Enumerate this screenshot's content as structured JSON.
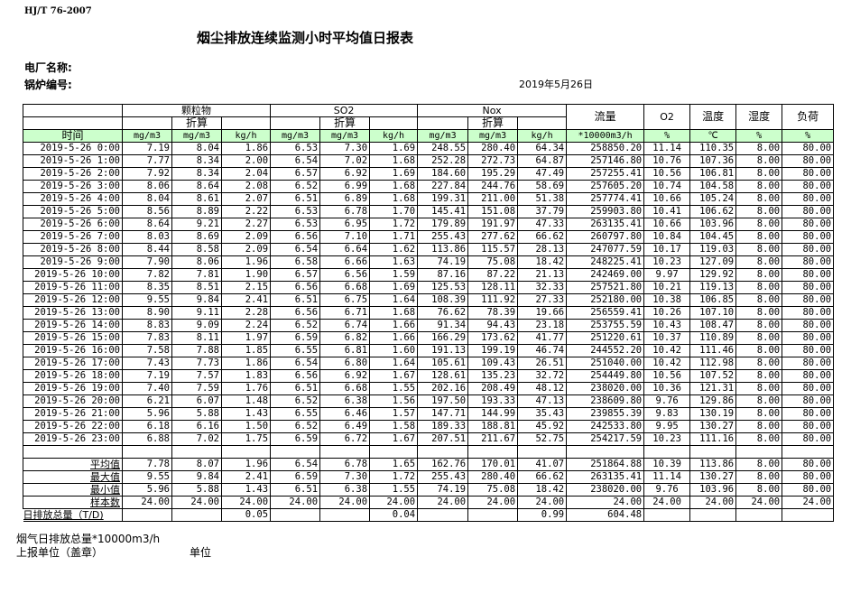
{
  "standard": "HJ/T  76-2007",
  "title": "烟尘排放连续监测小时平均值日报表",
  "plant_label": "电厂名称:",
  "boiler_label": "锅炉编号:",
  "report_date": "2019年5月26日",
  "header": {
    "particulate": "颗粒物",
    "so2": "SO2",
    "nox": "Nox",
    "converted": "折算",
    "flow": "流量",
    "o2": "O2",
    "temperature": "温度",
    "humidity": "湿度",
    "load": "负荷",
    "time": "时间",
    "units": [
      "mg/m3",
      "mg/m3",
      "kg/h",
      "mg/m3",
      "mg/m3",
      "kg/h",
      "mg/m3",
      "mg/m3",
      "kg/h",
      "*10000m3/h",
      "%",
      "℃",
      "%",
      "%"
    ]
  },
  "rows": [
    [
      "2019-5-26 0:00",
      "7.19",
      "8.04",
      "1.86",
      "6.53",
      "7.30",
      "1.69",
      "248.55",
      "280.40",
      "64.34",
      "258850.20",
      "11.14",
      "110.35",
      "8.00",
      "80.00"
    ],
    [
      "2019-5-26 1:00",
      "7.77",
      "8.34",
      "2.00",
      "6.54",
      "7.02",
      "1.68",
      "252.28",
      "272.73",
      "64.87",
      "257146.80",
      "10.76",
      "107.36",
      "8.00",
      "80.00"
    ],
    [
      "2019-5-26 2:00",
      "7.92",
      "8.34",
      "2.04",
      "6.57",
      "6.92",
      "1.69",
      "184.60",
      "195.29",
      "47.49",
      "257255.41",
      "10.56",
      "106.81",
      "8.00",
      "80.00"
    ],
    [
      "2019-5-26 3:00",
      "8.06",
      "8.64",
      "2.08",
      "6.52",
      "6.99",
      "1.68",
      "227.84",
      "244.76",
      "58.69",
      "257605.20",
      "10.74",
      "104.58",
      "8.00",
      "80.00"
    ],
    [
      "2019-5-26 4:00",
      "8.04",
      "8.61",
      "2.07",
      "6.51",
      "6.89",
      "1.68",
      "199.31",
      "211.00",
      "51.38",
      "257774.41",
      "10.66",
      "105.24",
      "8.00",
      "80.00"
    ],
    [
      "2019-5-26 5:00",
      "8.56",
      "8.89",
      "2.22",
      "6.53",
      "6.78",
      "1.70",
      "145.41",
      "151.08",
      "37.79",
      "259903.80",
      "10.41",
      "106.62",
      "8.00",
      "80.00"
    ],
    [
      "2019-5-26 6:00",
      "8.64",
      "9.21",
      "2.27",
      "6.53",
      "6.95",
      "1.72",
      "179.89",
      "191.97",
      "47.33",
      "263135.41",
      "10.66",
      "103.96",
      "8.00",
      "80.00"
    ],
    [
      "2019-5-26 7:00",
      "8.03",
      "8.69",
      "2.09",
      "6.56",
      "7.10",
      "1.71",
      "255.43",
      "277.62",
      "66.62",
      "260797.80",
      "10.84",
      "104.45",
      "8.00",
      "80.00"
    ],
    [
      "2019-5-26 8:00",
      "8.44",
      "8.58",
      "2.09",
      "6.54",
      "6.64",
      "1.62",
      "113.86",
      "115.57",
      "28.13",
      "247077.59",
      "10.17",
      "119.03",
      "8.00",
      "80.00"
    ],
    [
      "2019-5-26 9:00",
      "7.90",
      "8.06",
      "1.96",
      "6.58",
      "6.66",
      "1.63",
      "74.19",
      "75.08",
      "18.42",
      "248225.41",
      "10.23",
      "127.09",
      "8.00",
      "80.00"
    ],
    [
      "2019-5-26 10:00",
      "7.82",
      "7.81",
      "1.90",
      "6.57",
      "6.56",
      "1.59",
      "87.16",
      "87.22",
      "21.13",
      "242469.00",
      "9.97",
      "129.92",
      "8.00",
      "80.00"
    ],
    [
      "2019-5-26 11:00",
      "8.35",
      "8.51",
      "2.15",
      "6.56",
      "6.68",
      "1.69",
      "125.53",
      "128.11",
      "32.33",
      "257521.80",
      "10.21",
      "119.13",
      "8.00",
      "80.00"
    ],
    [
      "2019-5-26 12:00",
      "9.55",
      "9.84",
      "2.41",
      "6.51",
      "6.75",
      "1.64",
      "108.39",
      "111.92",
      "27.33",
      "252180.00",
      "10.38",
      "106.85",
      "8.00",
      "80.00"
    ],
    [
      "2019-5-26 13:00",
      "8.90",
      "9.11",
      "2.28",
      "6.56",
      "6.71",
      "1.68",
      "76.62",
      "78.39",
      "19.66",
      "256559.41",
      "10.26",
      "107.10",
      "8.00",
      "80.00"
    ],
    [
      "2019-5-26 14:00",
      "8.83",
      "9.09",
      "2.24",
      "6.52",
      "6.74",
      "1.66",
      "91.34",
      "94.43",
      "23.18",
      "253755.59",
      "10.43",
      "108.47",
      "8.00",
      "80.00"
    ],
    [
      "2019-5-26 15:00",
      "7.83",
      "8.11",
      "1.97",
      "6.59",
      "6.82",
      "1.66",
      "166.29",
      "173.62",
      "41.77",
      "251220.61",
      "10.37",
      "110.89",
      "8.00",
      "80.00"
    ],
    [
      "2019-5-26 16:00",
      "7.58",
      "7.88",
      "1.85",
      "6.55",
      "6.81",
      "1.60",
      "191.13",
      "199.19",
      "46.74",
      "244552.20",
      "10.42",
      "111.46",
      "8.00",
      "80.00"
    ],
    [
      "2019-5-26 17:00",
      "7.43",
      "7.73",
      "1.86",
      "6.54",
      "6.80",
      "1.64",
      "105.61",
      "109.43",
      "26.51",
      "251040.00",
      "10.42",
      "112.98",
      "8.00",
      "80.00"
    ],
    [
      "2019-5-26 18:00",
      "7.19",
      "7.57",
      "1.83",
      "6.56",
      "6.92",
      "1.67",
      "128.61",
      "135.23",
      "32.72",
      "254449.80",
      "10.56",
      "107.52",
      "8.00",
      "80.00"
    ],
    [
      "2019-5-26 19:00",
      "7.40",
      "7.59",
      "1.76",
      "6.51",
      "6.68",
      "1.55",
      "202.16",
      "208.49",
      "48.12",
      "238020.00",
      "10.36",
      "121.31",
      "8.00",
      "80.00"
    ],
    [
      "2019-5-26 20:00",
      "6.21",
      "6.07",
      "1.48",
      "6.52",
      "6.38",
      "1.56",
      "197.50",
      "193.33",
      "47.13",
      "238609.80",
      "9.76",
      "129.86",
      "8.00",
      "80.00"
    ],
    [
      "2019-5-26 21:00",
      "5.96",
      "5.88",
      "1.43",
      "6.55",
      "6.46",
      "1.57",
      "147.71",
      "144.99",
      "35.43",
      "239855.39",
      "9.83",
      "130.19",
      "8.00",
      "80.00"
    ],
    [
      "2019-5-26 22:00",
      "6.18",
      "6.16",
      "1.50",
      "6.52",
      "6.49",
      "1.58",
      "189.33",
      "188.81",
      "45.92",
      "242533.80",
      "9.95",
      "130.27",
      "8.00",
      "80.00"
    ],
    [
      "2019-5-26 23:00",
      "6.88",
      "7.02",
      "1.75",
      "6.59",
      "6.72",
      "1.67",
      "207.51",
      "211.67",
      "52.75",
      "254217.59",
      "10.23",
      "111.16",
      "8.00",
      "80.00"
    ]
  ],
  "summary": [
    [
      "平均值",
      "7.78",
      "8.07",
      "1.96",
      "6.54",
      "6.78",
      "1.65",
      "162.76",
      "170.01",
      "41.07",
      "251864.88",
      "10.39",
      "113.86",
      "8.00",
      "80.00"
    ],
    [
      "最大值",
      "9.55",
      "9.84",
      "2.41",
      "6.59",
      "7.30",
      "1.72",
      "255.43",
      "280.40",
      "66.62",
      "263135.41",
      "11.14",
      "130.27",
      "8.00",
      "80.00"
    ],
    [
      "最小值",
      "5.96",
      "5.88",
      "1.43",
      "6.51",
      "6.38",
      "1.55",
      "74.19",
      "75.08",
      "18.42",
      "238020.00",
      "9.76",
      "103.96",
      "8.00",
      "80.00"
    ],
    [
      "样本数",
      "24.00",
      "24.00",
      "24.00",
      "24.00",
      "24.00",
      "24.00",
      "24.00",
      "24.00",
      "24.00",
      "24.00",
      "24.00",
      "24.00",
      "24.00",
      "24.00"
    ],
    [
      "日排放总量（T/D)",
      "",
      "",
      "0.05",
      "",
      "",
      "0.04",
      "",
      "",
      "0.99",
      "604.48",
      "",
      "",
      "",
      ""
    ]
  ],
  "footer": {
    "flue_gas_total": "烟气日排放总量*10000m3/h",
    "reporting_unit": "上报单位（盖章）",
    "unit": "单位"
  }
}
